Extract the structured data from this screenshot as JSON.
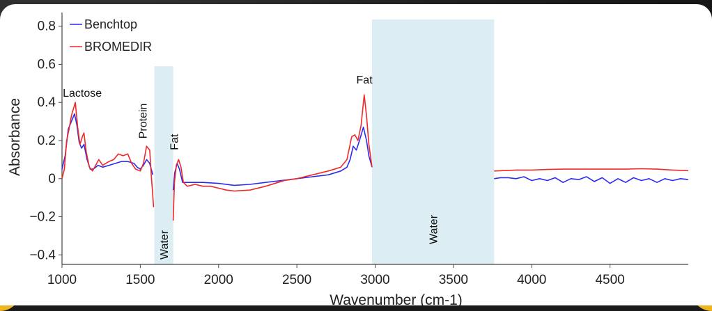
{
  "chart_data": {
    "type": "line",
    "xlabel": "Wavenumber (cm-1)",
    "ylabel": "Absorbance",
    "xlim": [
      1000,
      5000
    ],
    "ylim": [
      -0.45,
      0.85
    ],
    "x_ticks": [
      1000,
      1500,
      2000,
      2500,
      3000,
      3500,
      4000,
      4500
    ],
    "y_ticks": [
      0.8,
      0.6,
      0.4,
      0.2,
      0,
      -0.2,
      -0.4
    ],
    "y_tick_labels": [
      "0.8",
      "0.6",
      "0.4",
      "0.2",
      "0",
      "−0.2",
      "−0.4"
    ],
    "legend": {
      "position": "top-left"
    },
    "colors": {
      "benchtop": "#2b2bf0",
      "bromedir": "#f02828",
      "band": "#dcedf3"
    },
    "bands": [
      {
        "label": "Water",
        "x": [
          1590,
          1710
        ]
      },
      {
        "label": "Water",
        "x": [
          2980,
          3760
        ]
      }
    ],
    "annotations": [
      {
        "text": "Lactose",
        "x": 1005,
        "y": 0.43,
        "rotate": false
      },
      {
        "text": "Protein",
        "x": 1540,
        "y": 0.21,
        "rotate": true
      },
      {
        "text": "Fat",
        "x": 1740,
        "y": 0.15,
        "rotate": true
      },
      {
        "text": "Fat",
        "x": 2880,
        "y": 0.5,
        "rotate": false
      }
    ],
    "series": [
      {
        "name": "Benchtop",
        "color": "#2b2bf0",
        "segments": [
          [
            [
              1000,
              0.05
            ],
            [
              1020,
              0.12
            ],
            [
              1040,
              0.26
            ],
            [
              1060,
              0.3
            ],
            [
              1080,
              0.34
            ],
            [
              1095,
              0.28
            ],
            [
              1110,
              0.19
            ],
            [
              1125,
              0.16
            ],
            [
              1140,
              0.18
            ],
            [
              1160,
              0.1
            ],
            [
              1180,
              0.05
            ],
            [
              1200,
              0.05
            ],
            [
              1230,
              0.07
            ],
            [
              1260,
              0.06
            ],
            [
              1300,
              0.07
            ],
            [
              1340,
              0.08
            ],
            [
              1380,
              0.09
            ],
            [
              1420,
              0.09
            ],
            [
              1460,
              0.08
            ],
            [
              1480,
              0.06
            ],
            [
              1500,
              0.05
            ],
            [
              1520,
              0.07
            ],
            [
              1540,
              0.1
            ],
            [
              1560,
              0.08
            ],
            [
              1580,
              0.02
            ]
          ],
          [
            [
              1710,
              -0.06
            ],
            [
              1720,
              0.03
            ],
            [
              1735,
              0.08
            ],
            [
              1750,
              0.05
            ],
            [
              1770,
              -0.02
            ],
            [
              1800,
              -0.02
            ],
            [
              1900,
              -0.02
            ],
            [
              2000,
              -0.025
            ],
            [
              2100,
              -0.035
            ],
            [
              2200,
              -0.03
            ],
            [
              2300,
              -0.02
            ],
            [
              2400,
              -0.01
            ],
            [
              2500,
              0.0
            ],
            [
              2600,
              0.01
            ],
            [
              2700,
              0.02
            ],
            [
              2780,
              0.04
            ],
            [
              2820,
              0.06
            ],
            [
              2840,
              0.1
            ],
            [
              2860,
              0.17
            ],
            [
              2880,
              0.15
            ],
            [
              2900,
              0.2
            ],
            [
              2925,
              0.27
            ],
            [
              2945,
              0.2
            ],
            [
              2960,
              0.12
            ],
            [
              2980,
              0.06
            ]
          ],
          [
            [
              3760,
              0.0
            ],
            [
              3800,
              0.005
            ],
            [
              3850,
              0.005
            ],
            [
              3900,
              0.0
            ],
            [
              3950,
              0.01
            ],
            [
              4000,
              -0.01
            ],
            [
              4050,
              0.0
            ],
            [
              4100,
              -0.01
            ],
            [
              4150,
              0.005
            ],
            [
              4200,
              -0.02
            ],
            [
              4250,
              0.0
            ],
            [
              4300,
              -0.005
            ],
            [
              4350,
              0.01
            ],
            [
              4400,
              -0.015
            ],
            [
              4450,
              0.005
            ],
            [
              4500,
              -0.025
            ],
            [
              4550,
              0.0
            ],
            [
              4600,
              -0.02
            ],
            [
              4650,
              0.005
            ],
            [
              4700,
              -0.01
            ],
            [
              4750,
              0.0
            ],
            [
              4800,
              -0.02
            ],
            [
              4850,
              0.0
            ],
            [
              4900,
              -0.01
            ],
            [
              4950,
              0.0
            ],
            [
              5000,
              -0.005
            ]
          ]
        ]
      },
      {
        "name": "BROMEDIR",
        "color": "#f02828",
        "segments": [
          [
            [
              1000,
              0.0
            ],
            [
              1015,
              0.05
            ],
            [
              1030,
              0.2
            ],
            [
              1045,
              0.26
            ],
            [
              1060,
              0.33
            ],
            [
              1085,
              0.4
            ],
            [
              1100,
              0.27
            ],
            [
              1115,
              0.18
            ],
            [
              1130,
              0.22
            ],
            [
              1140,
              0.24
            ],
            [
              1155,
              0.14
            ],
            [
              1175,
              0.06
            ],
            [
              1195,
              0.04
            ],
            [
              1215,
              0.07
            ],
            [
              1235,
              0.1
            ],
            [
              1260,
              0.07
            ],
            [
              1300,
              0.09
            ],
            [
              1330,
              0.1
            ],
            [
              1360,
              0.13
            ],
            [
              1390,
              0.12
            ],
            [
              1420,
              0.13
            ],
            [
              1445,
              0.08
            ],
            [
              1470,
              0.05
            ],
            [
              1500,
              0.04
            ],
            [
              1520,
              0.08
            ],
            [
              1540,
              0.17
            ],
            [
              1560,
              0.15
            ],
            [
              1570,
              0.02
            ],
            [
              1585,
              -0.15
            ]
          ],
          [
            [
              1710,
              -0.22
            ],
            [
              1718,
              -0.02
            ],
            [
              1730,
              0.07
            ],
            [
              1745,
              0.1
            ],
            [
              1760,
              0.06
            ],
            [
              1775,
              -0.02
            ],
            [
              1800,
              -0.04
            ],
            [
              1850,
              -0.03
            ],
            [
              1900,
              -0.04
            ],
            [
              1950,
              -0.04
            ],
            [
              2000,
              -0.05
            ],
            [
              2050,
              -0.06
            ],
            [
              2100,
              -0.065
            ],
            [
              2200,
              -0.06
            ],
            [
              2300,
              -0.04
            ],
            [
              2380,
              -0.02
            ],
            [
              2420,
              -0.01
            ],
            [
              2500,
              0.0
            ],
            [
              2600,
              0.02
            ],
            [
              2700,
              0.04
            ],
            [
              2780,
              0.06
            ],
            [
              2820,
              0.1
            ],
            [
              2850,
              0.22
            ],
            [
              2870,
              0.23
            ],
            [
              2890,
              0.2
            ],
            [
              2910,
              0.28
            ],
            [
              2930,
              0.44
            ],
            [
              2945,
              0.33
            ],
            [
              2960,
              0.18
            ],
            [
              2980,
              0.06
            ]
          ],
          [
            [
              3760,
              0.04
            ],
            [
              3900,
              0.045
            ],
            [
              4000,
              0.045
            ],
            [
              4100,
              0.048
            ],
            [
              4200,
              0.05
            ],
            [
              4300,
              0.05
            ],
            [
              4400,
              0.05
            ],
            [
              4500,
              0.05
            ],
            [
              4600,
              0.05
            ],
            [
              4700,
              0.052
            ],
            [
              4800,
              0.05
            ],
            [
              4900,
              0.045
            ],
            [
              5000,
              0.042
            ]
          ]
        ]
      }
    ]
  }
}
